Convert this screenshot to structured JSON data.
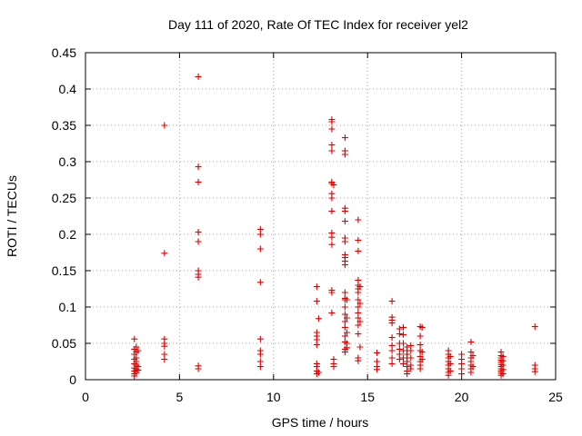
{
  "chart_data": {
    "type": "scatter",
    "title": "Day 111 of 2020, Rate Of TEC Index for receiver yel2",
    "xlabel": "GPS time / hours",
    "ylabel": "ROTI / TECUs",
    "xlim": [
      0,
      25
    ],
    "ylim": [
      0,
      0.45
    ],
    "xticks": [
      0,
      5,
      10,
      15,
      20,
      25
    ],
    "xtick_labels": [
      "0",
      "5",
      "10",
      "15",
      "20",
      "25"
    ],
    "yticks": [
      0,
      0.05,
      0.1,
      0.15,
      0.2,
      0.25,
      0.3,
      0.35,
      0.4,
      0.45
    ],
    "ytick_labels": [
      "0",
      "0.05",
      "0.1",
      "0.15",
      "0.2",
      "0.25",
      "0.3",
      "0.35",
      "0.4",
      "0.45"
    ],
    "grid": true,
    "marker": "+",
    "color": "#e00000",
    "series": [
      {
        "name": "yel2",
        "points": [
          [
            2.6,
            0.056
          ],
          [
            2.6,
            0.042
          ],
          [
            2.6,
            0.035
          ],
          [
            2.6,
            0.028
          ],
          [
            2.6,
            0.022
          ],
          [
            2.6,
            0.016
          ],
          [
            2.6,
            0.012
          ],
          [
            2.6,
            0.008
          ],
          [
            2.6,
            0.005
          ],
          [
            2.7,
            0.045
          ],
          [
            2.7,
            0.038
          ],
          [
            2.7,
            0.03
          ],
          [
            2.7,
            0.025
          ],
          [
            2.7,
            0.02
          ],
          [
            2.7,
            0.014
          ],
          [
            2.7,
            0.01
          ],
          [
            2.8,
            0.04
          ],
          [
            2.8,
            0.018
          ],
          [
            2.8,
            0.013
          ],
          [
            4.2,
            0.35
          ],
          [
            4.2,
            0.174
          ],
          [
            4.2,
            0.056
          ],
          [
            4.2,
            0.05
          ],
          [
            4.2,
            0.046
          ],
          [
            4.2,
            0.035
          ],
          [
            4.2,
            0.028
          ],
          [
            6.0,
            0.417
          ],
          [
            6.0,
            0.293
          ],
          [
            6.0,
            0.272
          ],
          [
            6.0,
            0.203
          ],
          [
            6.0,
            0.19
          ],
          [
            6.0,
            0.15
          ],
          [
            6.0,
            0.145
          ],
          [
            6.0,
            0.141
          ],
          [
            6.0,
            0.019
          ],
          [
            6.0,
            0.015
          ],
          [
            9.3,
            0.207
          ],
          [
            9.3,
            0.2
          ],
          [
            9.3,
            0.18
          ],
          [
            9.3,
            0.134
          ],
          [
            9.3,
            0.056
          ],
          [
            9.3,
            0.04
          ],
          [
            9.3,
            0.035
          ],
          [
            9.3,
            0.025
          ],
          [
            9.3,
            0.018
          ],
          [
            12.3,
            0.128
          ],
          [
            12.3,
            0.108
          ],
          [
            12.3,
            0.065
          ],
          [
            12.3,
            0.06
          ],
          [
            12.3,
            0.055
          ],
          [
            12.3,
            0.048
          ],
          [
            12.3,
            0.022
          ],
          [
            12.3,
            0.018
          ],
          [
            12.3,
            0.012
          ],
          [
            12.3,
            0.008
          ],
          [
            12.4,
            0.084
          ],
          [
            12.4,
            0.01
          ],
          [
            13.1,
            0.358
          ],
          [
            13.1,
            0.355
          ],
          [
            13.1,
            0.345
          ],
          [
            13.1,
            0.323
          ],
          [
            13.1,
            0.315
          ],
          [
            13.1,
            0.272
          ],
          [
            13.1,
            0.27
          ],
          [
            13.1,
            0.256
          ],
          [
            13.1,
            0.25
          ],
          [
            13.1,
            0.232
          ],
          [
            13.1,
            0.202
          ],
          [
            13.1,
            0.196
          ],
          [
            13.1,
            0.186
          ],
          [
            13.1,
            0.123
          ],
          [
            13.1,
            0.12
          ],
          [
            13.1,
            0.092
          ],
          [
            13.2,
            0.268
          ],
          [
            13.2,
            0.028
          ],
          [
            13.2,
            0.022
          ],
          [
            13.2,
            0.018
          ],
          [
            13.8,
            0.333
          ],
          [
            13.8,
            0.315
          ],
          [
            13.8,
            0.31
          ],
          [
            13.8,
            0.236
          ],
          [
            13.8,
            0.232
          ],
          [
            13.8,
            0.218
          ],
          [
            13.8,
            0.195
          ],
          [
            13.8,
            0.19
          ],
          [
            13.8,
            0.172
          ],
          [
            13.8,
            0.168
          ],
          [
            13.8,
            0.163
          ],
          [
            13.8,
            0.158
          ],
          [
            13.8,
            0.12
          ],
          [
            13.8,
            0.112
          ],
          [
            13.8,
            0.11
          ],
          [
            13.8,
            0.1
          ],
          [
            13.8,
            0.09
          ],
          [
            13.8,
            0.08
          ],
          [
            13.8,
            0.072
          ],
          [
            13.8,
            0.06
          ],
          [
            13.8,
            0.052
          ],
          [
            13.8,
            0.042
          ],
          [
            13.8,
            0.038
          ],
          [
            13.9,
            0.11
          ],
          [
            13.9,
            0.085
          ],
          [
            13.9,
            0.065
          ],
          [
            13.9,
            0.05
          ],
          [
            13.9,
            0.044
          ],
          [
            14.5,
            0.22
          ],
          [
            14.5,
            0.192
          ],
          [
            14.5,
            0.177
          ],
          [
            14.5,
            0.137
          ],
          [
            14.5,
            0.13
          ],
          [
            14.5,
            0.125
          ],
          [
            14.5,
            0.12
          ],
          [
            14.5,
            0.11
          ],
          [
            14.5,
            0.1
          ],
          [
            14.5,
            0.092
          ],
          [
            14.5,
            0.085
          ],
          [
            14.5,
            0.075
          ],
          [
            14.5,
            0.063
          ],
          [
            14.5,
            0.03
          ],
          [
            14.5,
            0.026
          ],
          [
            14.6,
            0.128
          ],
          [
            14.6,
            0.105
          ],
          [
            14.6,
            0.08
          ],
          [
            14.6,
            0.045
          ],
          [
            15.5,
            0.037
          ],
          [
            15.5,
            0.025
          ],
          [
            15.5,
            0.018
          ],
          [
            15.5,
            0.014
          ],
          [
            16.3,
            0.108
          ],
          [
            16.3,
            0.086
          ],
          [
            16.3,
            0.082
          ],
          [
            16.3,
            0.078
          ],
          [
            16.3,
            0.058
          ],
          [
            16.3,
            0.047
          ],
          [
            16.3,
            0.04
          ],
          [
            16.3,
            0.03
          ],
          [
            16.3,
            0.022
          ],
          [
            16.7,
            0.07
          ],
          [
            16.7,
            0.063
          ],
          [
            16.7,
            0.05
          ],
          [
            16.7,
            0.042
          ],
          [
            16.7,
            0.035
          ],
          [
            16.7,
            0.028
          ],
          [
            16.9,
            0.072
          ],
          [
            16.9,
            0.062
          ],
          [
            16.9,
            0.05
          ],
          [
            16.9,
            0.04
          ],
          [
            16.9,
            0.03
          ],
          [
            16.9,
            0.022
          ],
          [
            17.1,
            0.045
          ],
          [
            17.1,
            0.04
          ],
          [
            17.1,
            0.035
          ],
          [
            17.1,
            0.03
          ],
          [
            17.1,
            0.025
          ],
          [
            17.1,
            0.018
          ],
          [
            17.1,
            0.012
          ],
          [
            17.1,
            0.008
          ],
          [
            17.3,
            0.047
          ],
          [
            17.3,
            0.04
          ],
          [
            17.3,
            0.03
          ],
          [
            17.3,
            0.02
          ],
          [
            17.3,
            0.015
          ],
          [
            17.8,
            0.073
          ],
          [
            17.8,
            0.06
          ],
          [
            17.8,
            0.048
          ],
          [
            17.8,
            0.04
          ],
          [
            17.8,
            0.032
          ],
          [
            17.8,
            0.025
          ],
          [
            17.8,
            0.02
          ],
          [
            17.8,
            0.015
          ],
          [
            17.9,
            0.072
          ],
          [
            17.9,
            0.038
          ],
          [
            17.9,
            0.028
          ],
          [
            19.3,
            0.04
          ],
          [
            19.3,
            0.035
          ],
          [
            19.3,
            0.03
          ],
          [
            19.3,
            0.025
          ],
          [
            19.3,
            0.02
          ],
          [
            19.3,
            0.015
          ],
          [
            19.3,
            0.01
          ],
          [
            19.3,
            0.006
          ],
          [
            19.4,
            0.032
          ],
          [
            19.4,
            0.022
          ],
          [
            19.4,
            0.012
          ],
          [
            20.0,
            0.035
          ],
          [
            20.0,
            0.028
          ],
          [
            20.0,
            0.022
          ],
          [
            20.0,
            0.015
          ],
          [
            20.0,
            0.008
          ],
          [
            20.5,
            0.052
          ],
          [
            20.5,
            0.038
          ],
          [
            20.5,
            0.03
          ],
          [
            20.5,
            0.025
          ],
          [
            20.5,
            0.02
          ],
          [
            20.5,
            0.015
          ],
          [
            20.5,
            0.01
          ],
          [
            20.6,
            0.033
          ],
          [
            20.6,
            0.018
          ],
          [
            22.1,
            0.038
          ],
          [
            22.1,
            0.033
          ],
          [
            22.1,
            0.03
          ],
          [
            22.1,
            0.027
          ],
          [
            22.1,
            0.024
          ],
          [
            22.1,
            0.021
          ],
          [
            22.1,
            0.018
          ],
          [
            22.1,
            0.015
          ],
          [
            22.1,
            0.012
          ],
          [
            22.1,
            0.009
          ],
          [
            22.1,
            0.006
          ],
          [
            22.2,
            0.032
          ],
          [
            22.2,
            0.026
          ],
          [
            22.2,
            0.02
          ],
          [
            22.2,
            0.014
          ],
          [
            22.2,
            0.008
          ],
          [
            23.9,
            0.073
          ],
          [
            23.9,
            0.02
          ],
          [
            23.9,
            0.015
          ],
          [
            23.9,
            0.011
          ]
        ]
      }
    ]
  }
}
